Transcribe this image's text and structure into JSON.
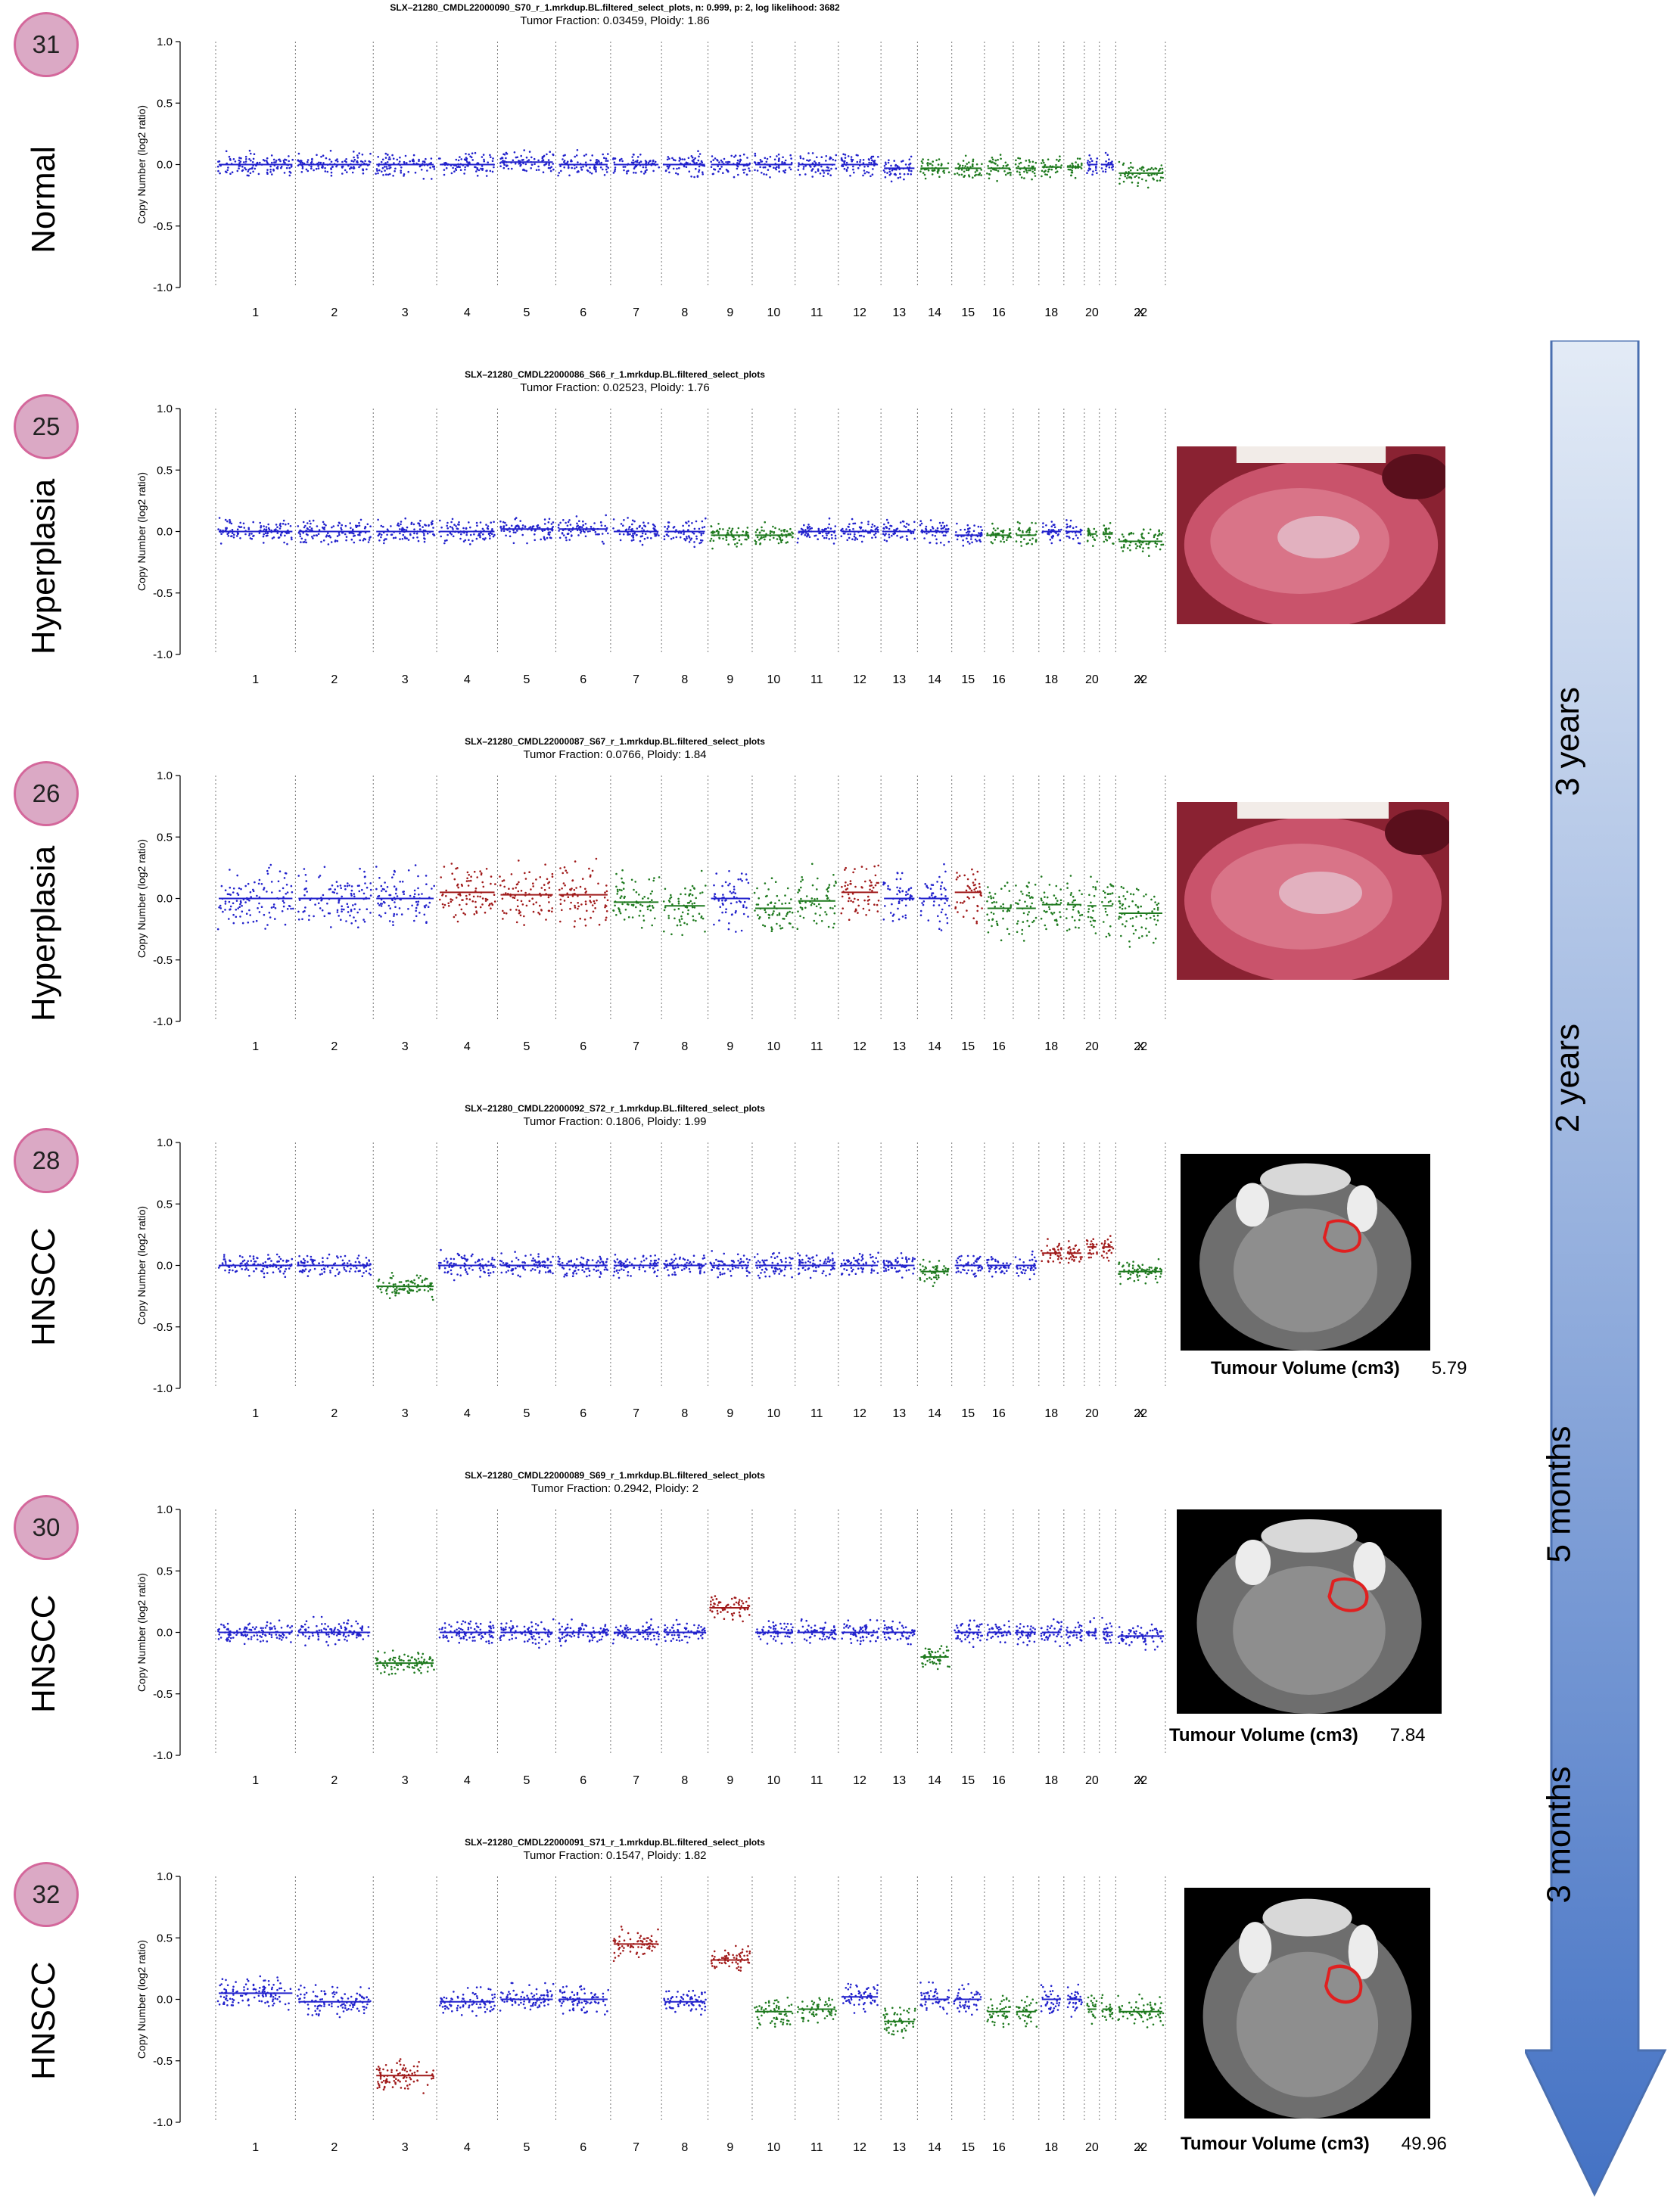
{
  "panels": [
    {
      "id": "31",
      "label": "Normal",
      "title1": "SLX–21280_CMDL22000090_S70_r_1.mrkdup.BL.filtered_select_plots, n: 0.999, p: 2, log likelihood: 3682",
      "title2": "Tumor Fraction: 0.03459, Ploidy: 1.86",
      "image": null,
      "volume_label": null,
      "volume": null
    },
    {
      "id": "25",
      "label": "Hyperplasia",
      "title1": "SLX–21280_CMDL22000086_S66_r_1.mrkdup.BL.filtered_select_plots",
      "title2": "Tumor Fraction: 0.02523, Ploidy: 1.76",
      "image": "oral-photo",
      "volume_label": null,
      "volume": null
    },
    {
      "id": "26",
      "label": "Hyperplasia",
      "title1": "SLX–21280_CMDL22000087_S67_r_1.mrkdup.BL.filtered_select_plots",
      "title2": "Tumor Fraction: 0.0766, Ploidy: 1.84",
      "image": "oral-photo",
      "volume_label": null,
      "volume": null
    },
    {
      "id": "28",
      "label": "HNSCC",
      "title1": "SLX–21280_CMDL22000092_S72_r_1.mrkdup.BL.filtered_select_plots",
      "title2": "Tumor Fraction: 0.1806, Ploidy: 1.99",
      "image": "ct-scan",
      "volume_label": "Tumour Volume (cm3)",
      "volume": "5.79"
    },
    {
      "id": "30",
      "label": "HNSCC",
      "title1": "SLX–21280_CMDL22000089_S69_r_1.mrkdup.BL.filtered_select_plots",
      "title2": "Tumor Fraction: 0.2942, Ploidy: 2",
      "image": "ct-scan",
      "volume_label": "Tumour Volume (cm3)",
      "volume": "7.84"
    },
    {
      "id": "32",
      "label": "HNSCC",
      "title1": "SLX–21280_CMDL22000091_S71_r_1.mrkdup.BL.filtered_select_plots",
      "title2": "Tumor Fraction: 0.1547, Ploidy: 1.82",
      "image": "ct-scan",
      "volume_label": "Tumour Volume (cm3)",
      "volume": "49.96"
    }
  ],
  "timeline": {
    "labels": [
      "3 years",
      "2 years",
      "5 months",
      "3 months"
    ],
    "color_top": "#e3ebf6",
    "color_bottom": "#4472c4"
  },
  "colors": {
    "neutral": "#2222cc",
    "loss": "#1f7a1f",
    "gain": "#a01a1a",
    "badge_fill": "#dba9c5",
    "badge_border": "#d4679b"
  },
  "chart_data": [
    {
      "type": "scatter",
      "ylabel": "Copy Number (log2 ratio)",
      "ylim": [
        -1,
        1
      ],
      "yticks": [
        "1.0",
        "0.5",
        "0.0",
        "-0.5",
        "-1.0"
      ],
      "xticks": [
        "1",
        "2",
        "3",
        "4",
        "5",
        "6",
        "7",
        "8",
        "9",
        "10",
        "11",
        "12",
        "13",
        "14",
        "15",
        "16",
        "18",
        "20",
        "22",
        "X"
      ],
      "segments": [
        0,
        0,
        0,
        0,
        0.02,
        0,
        0,
        0,
        0,
        0,
        0,
        0,
        -0.03,
        -0.03,
        -0.03,
        -0.03,
        -0.02,
        0,
        -0.02,
        -0.07
      ],
      "states": [
        "n",
        "n",
        "n",
        "n",
        "n",
        "n",
        "n",
        "n",
        "n",
        "n",
        "n",
        "n",
        "n",
        "l",
        "l",
        "l",
        "l",
        "n",
        "n",
        "l"
      ]
    },
    {
      "type": "scatter",
      "ylabel": "Copy Number (log2 ratio)",
      "ylim": [
        -1,
        1
      ],
      "yticks": [
        "1.0",
        "0.5",
        "0.0",
        "-0.5",
        "-1.0"
      ],
      "xticks": [
        "1",
        "2",
        "3",
        "4",
        "5",
        "6",
        "7",
        "8",
        "9",
        "10",
        "11",
        "12",
        "13",
        "14",
        "15",
        "16",
        "18",
        "20",
        "22",
        "X"
      ],
      "segments": [
        0,
        0,
        0,
        0,
        0.02,
        0.02,
        0,
        0,
        -0.03,
        -0.03,
        0,
        0,
        0,
        0,
        -0.03,
        -0.03,
        0,
        -0.02,
        0,
        -0.08
      ],
      "states": [
        "n",
        "n",
        "n",
        "n",
        "n",
        "n",
        "n",
        "n",
        "l",
        "l",
        "n",
        "n",
        "n",
        "n",
        "n",
        "l",
        "n",
        "l",
        "n",
        "l"
      ]
    },
    {
      "type": "scatter",
      "ylabel": "Copy Number (log2 ratio)",
      "ylim": [
        -1,
        1
      ],
      "yticks": [
        "1.0",
        "0.5",
        "0.0",
        "-0.5",
        "-1.0"
      ],
      "xticks": [
        "1",
        "2",
        "3",
        "4",
        "5",
        "6",
        "7",
        "8",
        "9",
        "10",
        "11",
        "12",
        "13",
        "14",
        "15",
        "16",
        "18",
        "20",
        "22",
        "X"
      ],
      "segments": [
        0,
        0,
        0,
        0.05,
        0.03,
        0.03,
        -0.03,
        -0.06,
        0,
        -0.08,
        -0.02,
        0.05,
        0,
        0,
        0.05,
        -0.08,
        -0.05,
        -0.06,
        0,
        -0.12
      ],
      "states": [
        "n",
        "n",
        "n",
        "g",
        "g",
        "g",
        "l",
        "l",
        "n",
        "l",
        "l",
        "g",
        "n",
        "n",
        "g",
        "l",
        "l",
        "l",
        "n",
        "l"
      ]
    },
    {
      "type": "scatter",
      "ylabel": "Copy Number (log2 ratio)",
      "ylim": [
        -1,
        1
      ],
      "yticks": [
        "1.0",
        "0.5",
        "0.0",
        "-0.5",
        "-1.0"
      ],
      "xticks": [
        "1",
        "2",
        "3",
        "4",
        "5",
        "6",
        "7",
        "8",
        "9",
        "10",
        "11",
        "12",
        "13",
        "14",
        "15",
        "16",
        "18",
        "20",
        "22",
        "X"
      ],
      "segments": [
        0,
        0,
        -0.17,
        0,
        0,
        0,
        0,
        0,
        0,
        0,
        0,
        0,
        0,
        -0.05,
        0,
        0,
        0.1,
        0.15,
        0,
        -0.05
      ],
      "states": [
        "n",
        "n",
        "l",
        "n",
        "n",
        "n",
        "n",
        "n",
        "n",
        "n",
        "n",
        "n",
        "n",
        "l",
        "n",
        "n",
        "g",
        "g",
        "n",
        "l"
      ]
    },
    {
      "type": "scatter",
      "ylabel": "Copy Number (log2 ratio)",
      "ylim": [
        -1,
        1
      ],
      "yticks": [
        "1.0",
        "0.5",
        "0.0",
        "-0.5",
        "-1.0"
      ],
      "xticks": [
        "1",
        "2",
        "3",
        "4",
        "5",
        "6",
        "7",
        "8",
        "9",
        "10",
        "11",
        "12",
        "13",
        "14",
        "15",
        "16",
        "18",
        "20",
        "22",
        "X"
      ],
      "segments": [
        0,
        0,
        -0.25,
        0,
        0,
        0,
        0,
        0,
        0.2,
        0,
        0,
        0,
        0,
        -0.2,
        0,
        0,
        0,
        0,
        0,
        -0.03
      ],
      "states": [
        "n",
        "n",
        "l",
        "n",
        "n",
        "n",
        "n",
        "n",
        "g",
        "n",
        "n",
        "n",
        "n",
        "l",
        "n",
        "n",
        "n",
        "n",
        "n",
        "n"
      ]
    },
    {
      "type": "scatter",
      "ylabel": "Copy Number (log2 ratio)",
      "ylim": [
        -1,
        1
      ],
      "yticks": [
        "1.0",
        "0.5",
        "0.0",
        "-0.5",
        "-1.0"
      ],
      "xticks": [
        "1",
        "2",
        "3",
        "4",
        "5",
        "6",
        "7",
        "8",
        "9",
        "10",
        "11",
        "12",
        "13",
        "14",
        "15",
        "16",
        "18",
        "20",
        "22",
        "X"
      ],
      "segments": [
        0.05,
        -0.02,
        -0.62,
        -0.02,
        0,
        0,
        0.45,
        -0.02,
        0.32,
        -0.1,
        -0.08,
        0.02,
        -0.18,
        0,
        0,
        -0.1,
        0,
        -0.08,
        0,
        -0.1
      ],
      "states": [
        "n",
        "n",
        "g",
        "n",
        "n",
        "n",
        "g",
        "n",
        "g",
        "l",
        "l",
        "n",
        "l",
        "n",
        "n",
        "l",
        "n",
        "l",
        "n",
        "l"
      ]
    }
  ]
}
